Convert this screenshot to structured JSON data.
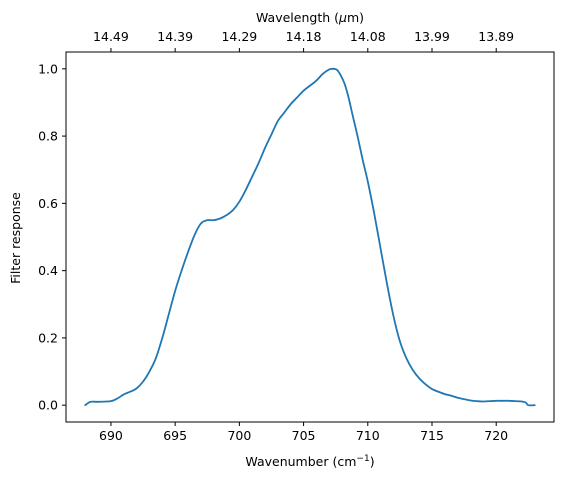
{
  "chart_data": {
    "type": "line",
    "xlabel": "Wavenumber (cm",
    "xlabel_sup": "−1",
    "xlabel_suffix": ")",
    "ylabel": "Filter response",
    "top_xlabel": "Wavelength (",
    "top_xlabel_mu": "μ",
    "top_xlabel_suffix": "m)",
    "xlim": [
      686.5,
      724.5
    ],
    "ylim": [
      -0.05,
      1.05
    ],
    "xticks": [
      690,
      695,
      700,
      705,
      710,
      715,
      720
    ],
    "xtick_labels": [
      "690",
      "695",
      "700",
      "705",
      "710",
      "715",
      "720"
    ],
    "yticks": [
      0.0,
      0.2,
      0.4,
      0.6,
      0.8,
      1.0
    ],
    "ytick_labels": [
      "0.0",
      "0.2",
      "0.4",
      "0.6",
      "0.8",
      "1.0"
    ],
    "top_xtick_labels": [
      "14.49",
      "14.39",
      "14.29",
      "14.18",
      "14.08",
      "13.99",
      "13.89"
    ],
    "grid": false,
    "line_color": "#1f77b4",
    "series": [
      {
        "x": [
          688,
          688.4,
          689,
          690,
          690.5,
          691,
          691.5,
          692,
          692.5,
          693,
          693.5,
          694,
          694.5,
          695,
          695.5,
          696,
          696.5,
          697,
          697.5,
          698,
          698.5,
          699,
          699.5,
          700,
          700.5,
          701,
          701.5,
          702,
          702.5,
          703,
          703.5,
          704,
          704.5,
          705,
          705.5,
          706,
          706.5,
          707,
          707.3,
          707.6,
          707.9,
          708.2,
          708.5,
          708.8,
          709.2,
          709.6,
          710,
          710.5,
          711,
          711.5,
          712,
          712.5,
          713,
          713.5,
          714,
          714.5,
          715,
          715.5,
          716,
          716.5,
          717,
          717.5,
          718,
          718.5,
          719,
          719.5,
          720,
          720.5,
          721,
          721.5,
          722,
          722.3,
          722.5,
          723
        ],
        "y": [
          0.0,
          0.01,
          0.01,
          0.012,
          0.02,
          0.032,
          0.04,
          0.05,
          0.07,
          0.1,
          0.14,
          0.2,
          0.27,
          0.34,
          0.4,
          0.455,
          0.505,
          0.54,
          0.55,
          0.55,
          0.555,
          0.565,
          0.58,
          0.605,
          0.64,
          0.68,
          0.72,
          0.765,
          0.805,
          0.845,
          0.87,
          0.895,
          0.915,
          0.935,
          0.95,
          0.965,
          0.985,
          0.998,
          1.0,
          0.997,
          0.98,
          0.955,
          0.915,
          0.865,
          0.8,
          0.73,
          0.665,
          0.57,
          0.465,
          0.36,
          0.265,
          0.19,
          0.14,
          0.105,
          0.08,
          0.062,
          0.048,
          0.04,
          0.033,
          0.028,
          0.022,
          0.018,
          0.014,
          0.012,
          0.011,
          0.012,
          0.013,
          0.013,
          0.013,
          0.012,
          0.011,
          0.008,
          0.0,
          0.0
        ]
      }
    ]
  }
}
